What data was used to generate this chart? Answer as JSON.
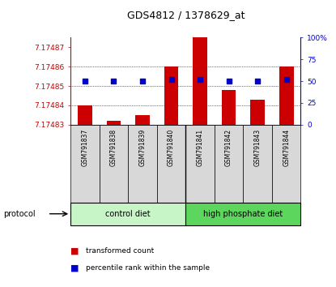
{
  "title": "GDS4812 / 1378629_at",
  "samples": [
    "GSM791837",
    "GSM791838",
    "GSM791839",
    "GSM791840",
    "GSM791841",
    "GSM791842",
    "GSM791843",
    "GSM791844"
  ],
  "red_values": [
    7.17484,
    7.174832,
    7.174835,
    7.17486,
    7.174875,
    7.174848,
    7.174843,
    7.17486
  ],
  "blue_values": [
    50,
    50,
    50,
    52,
    52,
    50,
    50,
    52
  ],
  "ylim_left": [
    7.17483,
    7.174875
  ],
  "ylim_right": [
    0,
    100
  ],
  "yticks_left": [
    7.17483,
    7.17484,
    7.17485,
    7.17486,
    7.17487
  ],
  "yticks_right": [
    0,
    25,
    50,
    75,
    100
  ],
  "ytick_labels_right": [
    "0",
    "25",
    "50",
    "75",
    "100%"
  ],
  "grid_values": [
    7.17484,
    7.17485,
    7.17486
  ],
  "groups": [
    {
      "label": "control diet",
      "color": "#c8f5c8",
      "darker": "#5cd65c"
    },
    {
      "label": "high phosphate diet",
      "color": "#5cd65c",
      "darker": "#5cd65c"
    }
  ],
  "bar_color": "#cc0000",
  "dot_color": "#0000cc",
  "axis_left_color": "#cc0000",
  "axis_right_color": "#0000cc",
  "bg_color": "#ffffff",
  "tick_label_bg": "#d8d8d8",
  "legend_red_label": "transformed count",
  "legend_blue_label": "percentile rank within the sample"
}
